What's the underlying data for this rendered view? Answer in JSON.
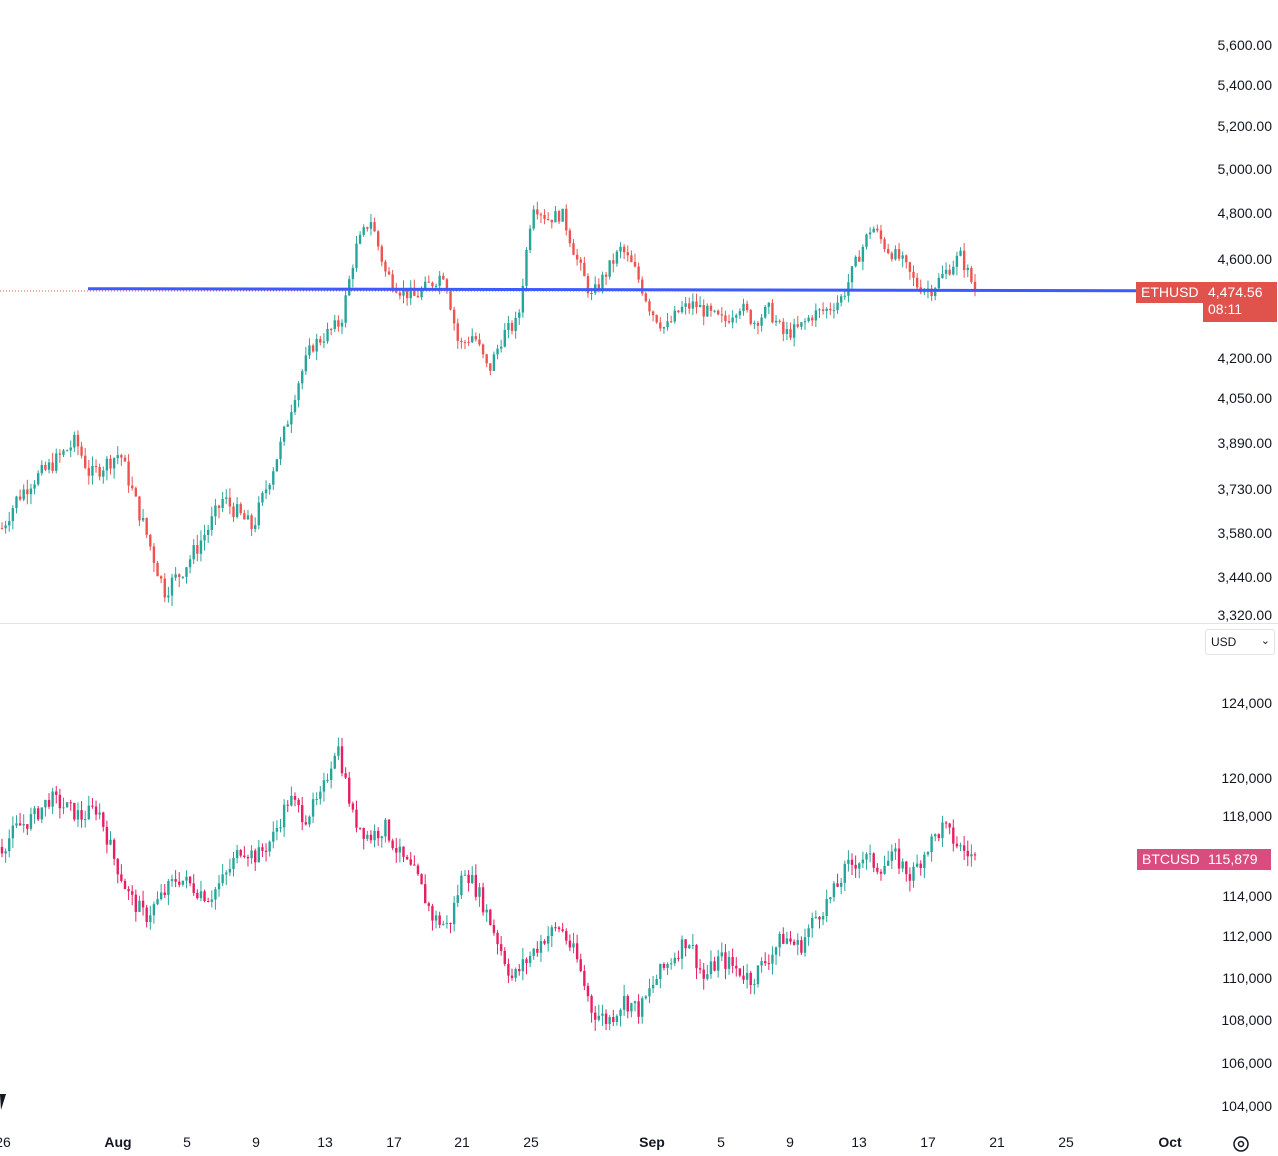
{
  "chart_data": [
    {
      "type": "candlestick",
      "symbol": "ETHUSD",
      "last_price": "4,474.56",
      "countdown": "08:11",
      "currency": "USD",
      "y_axis_ticks": [
        "5,600.00",
        "5,400.00",
        "5,200.00",
        "5,000.00",
        "4,800.00",
        "4,600.00",
        "4,200.00",
        "4,050.00",
        "3,890.00",
        "3,730.00",
        "3,580.00",
        "3,440.00",
        "3,320.00"
      ],
      "horizontal_line": 4480,
      "up_color": "#26a69a",
      "down_color": "#ef5350",
      "line_color": "#3d5afe",
      "closes_approx": [
        3600,
        3700,
        3760,
        3800,
        3850,
        3900,
        3780,
        3820,
        3860,
        3700,
        3550,
        3400,
        3450,
        3520,
        3600,
        3700,
        3650,
        3600,
        3750,
        3900,
        4100,
        4250,
        4300,
        4350,
        4650,
        4780,
        4550,
        4480,
        4450,
        4500,
        4550,
        4250,
        4300,
        4150,
        4300,
        4350,
        4850,
        4780,
        4800,
        4600,
        4450,
        4550,
        4650,
        4550,
        4400,
        4320,
        4400,
        4420,
        4380,
        4350,
        4420,
        4350,
        4400,
        4300,
        4320,
        4380,
        4400,
        4450,
        4600,
        4750,
        4650,
        4600,
        4500,
        4480,
        4550,
        4620,
        4480
      ]
    },
    {
      "type": "candlestick",
      "symbol": "BTCUSD",
      "last_price": "115,879",
      "y_axis_ticks": [
        "124,000",
        "120,000",
        "118,000",
        "114,000",
        "112,000",
        "110,000",
        "108,000",
        "106,000",
        "104,000"
      ],
      "up_color": "#26a69a",
      "down_color": "#e91e63",
      "closes_approx": [
        116500,
        117500,
        118000,
        119000,
        118500,
        118000,
        118500,
        116000,
        114000,
        113000,
        114000,
        115000,
        114500,
        114000,
        115000,
        116500,
        116000,
        117000,
        119000,
        118000,
        119000,
        122000,
        118000,
        117000,
        117500,
        116000,
        115000,
        113000,
        112500,
        115500,
        114000,
        112000,
        110000,
        111000,
        112000,
        112500,
        111000,
        108500,
        108000,
        109000,
        108500,
        110000,
        111000,
        112000,
        110000,
        111000,
        110500,
        110000,
        111000,
        112000,
        111500,
        113000,
        114000,
        115500,
        116000,
        115500,
        116000,
        115000,
        116500,
        117500,
        116500,
        115900
      ],
      "x_axis_ticks": [
        "26",
        "Aug",
        "5",
        "9",
        "13",
        "17",
        "21",
        "25",
        "Sep",
        "5",
        "9",
        "13",
        "17",
        "21",
        "25",
        "Oct"
      ]
    }
  ],
  "x_axis": {
    "labels": [
      "26",
      "Aug",
      "5",
      "9",
      "13",
      "17",
      "21",
      "25",
      "Sep",
      "5",
      "9",
      "13",
      "17",
      "21",
      "25",
      "Oct"
    ]
  }
}
